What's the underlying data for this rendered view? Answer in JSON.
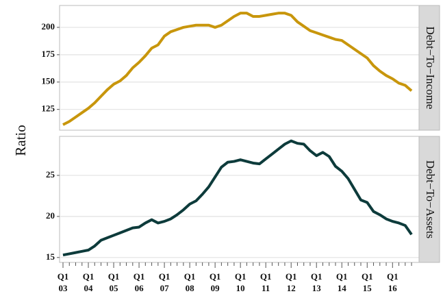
{
  "chart_data": {
    "type": "line",
    "y_label": "Ratio",
    "categories": [
      "Q1 03",
      null,
      null,
      null,
      "Q1 04",
      null,
      null,
      null,
      "Q1 05",
      null,
      null,
      null,
      "Q1 06",
      null,
      null,
      null,
      "Q1 07",
      null,
      null,
      null,
      "Q1 08",
      null,
      null,
      null,
      "Q1 09",
      null,
      null,
      null,
      "Q1 10",
      null,
      null,
      null,
      "Q1 11",
      null,
      null,
      null,
      "Q1 12",
      null,
      null,
      null,
      "Q1 13",
      null,
      null,
      null,
      "Q1 14",
      null,
      null,
      null,
      "Q1 15",
      null,
      null,
      null,
      "Q1 16",
      null,
      null,
      null
    ],
    "panels": [
      {
        "label": "Debt−To−Income",
        "color": "#c8960c",
        "ylim": [
          106,
          220
        ],
        "yticks": [
          125,
          150,
          175,
          200
        ],
        "grid": true,
        "values": [
          111,
          114,
          118,
          122,
          126,
          131,
          137,
          143,
          148,
          151,
          156,
          163,
          168,
          174,
          181,
          184,
          192,
          196,
          198,
          200,
          201,
          202,
          202,
          202,
          200,
          202,
          206,
          210,
          213,
          213,
          210,
          210,
          211,
          212,
          213,
          213,
          211,
          205,
          201,
          197,
          195,
          193,
          191,
          189,
          188,
          184,
          180,
          176,
          172,
          165,
          160,
          156,
          153,
          149,
          147,
          142
        ]
      },
      {
        "label": "Debt−To−Assets",
        "color": "#0d3b3b",
        "ylim": [
          14.4,
          29.75
        ],
        "yticks": [
          15,
          20,
          25
        ],
        "grid": true,
        "values": [
          15.3,
          15.45,
          15.6,
          15.75,
          15.9,
          16.4,
          17.1,
          17.4,
          17.7,
          18.0,
          18.3,
          18.6,
          18.7,
          19.2,
          19.6,
          19.2,
          19.4,
          19.7,
          20.2,
          20.8,
          21.5,
          21.9,
          22.7,
          23.6,
          24.8,
          26.0,
          26.6,
          26.7,
          26.9,
          26.7,
          26.5,
          26.4,
          27.0,
          27.6,
          28.2,
          28.8,
          29.2,
          28.9,
          28.8,
          28.0,
          27.4,
          27.8,
          27.3,
          26.1,
          25.5,
          24.6,
          23.3,
          22.0,
          21.7,
          20.6,
          20.2,
          19.7,
          19.4,
          19.2,
          18.9,
          17.8
        ]
      }
    ]
  }
}
